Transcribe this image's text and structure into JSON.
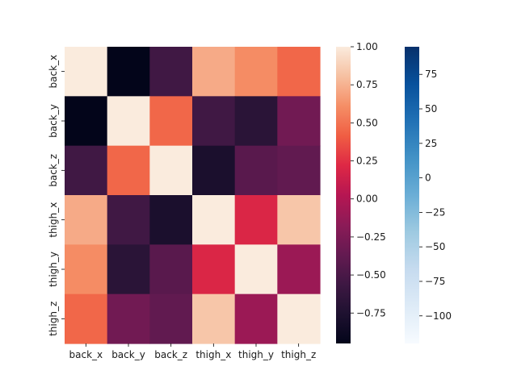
{
  "chart_data": [
    {
      "type": "heatmap",
      "title": "",
      "xlabel": "",
      "ylabel": "",
      "x_categories": [
        "back_x",
        "back_y",
        "back_z",
        "thigh_x",
        "thigh_y",
        "thigh_z"
      ],
      "y_categories": [
        "back_x",
        "back_y",
        "back_z",
        "thigh_x",
        "thigh_y",
        "thigh_z"
      ],
      "values": [
        [
          1.0,
          -0.95,
          -0.55,
          0.72,
          0.6,
          0.45
        ],
        [
          -0.95,
          1.0,
          0.45,
          -0.55,
          -0.68,
          -0.3
        ],
        [
          -0.55,
          0.45,
          1.0,
          -0.78,
          -0.42,
          -0.38
        ],
        [
          0.72,
          -0.55,
          -0.78,
          1.0,
          0.2,
          0.83
        ],
        [
          0.6,
          -0.68,
          -0.42,
          0.2,
          1.0,
          -0.1
        ],
        [
          0.45,
          -0.3,
          -0.38,
          0.83,
          -0.1,
          1.0
        ]
      ],
      "colormap": "rocket",
      "colorbar": {
        "range": [
          -0.95,
          1.0
        ],
        "ticks": [
          -0.75,
          -0.5,
          -0.25,
          0.0,
          0.25,
          0.5,
          0.75,
          1.0
        ],
        "tick_labels": [
          "−0.75",
          "−0.50",
          "−0.25",
          "0.00",
          "0.25",
          "0.50",
          "0.75",
          "1.00"
        ]
      }
    },
    {
      "type": "colorbar",
      "colormap": "Blues",
      "range": [
        -120,
        95
      ],
      "ticks": [
        -100,
        -75,
        -50,
        -25,
        0,
        25,
        50,
        75
      ],
      "tick_labels": [
        "−100",
        "−75",
        "−50",
        "−25",
        "0",
        "25",
        "50",
        "75"
      ]
    }
  ]
}
